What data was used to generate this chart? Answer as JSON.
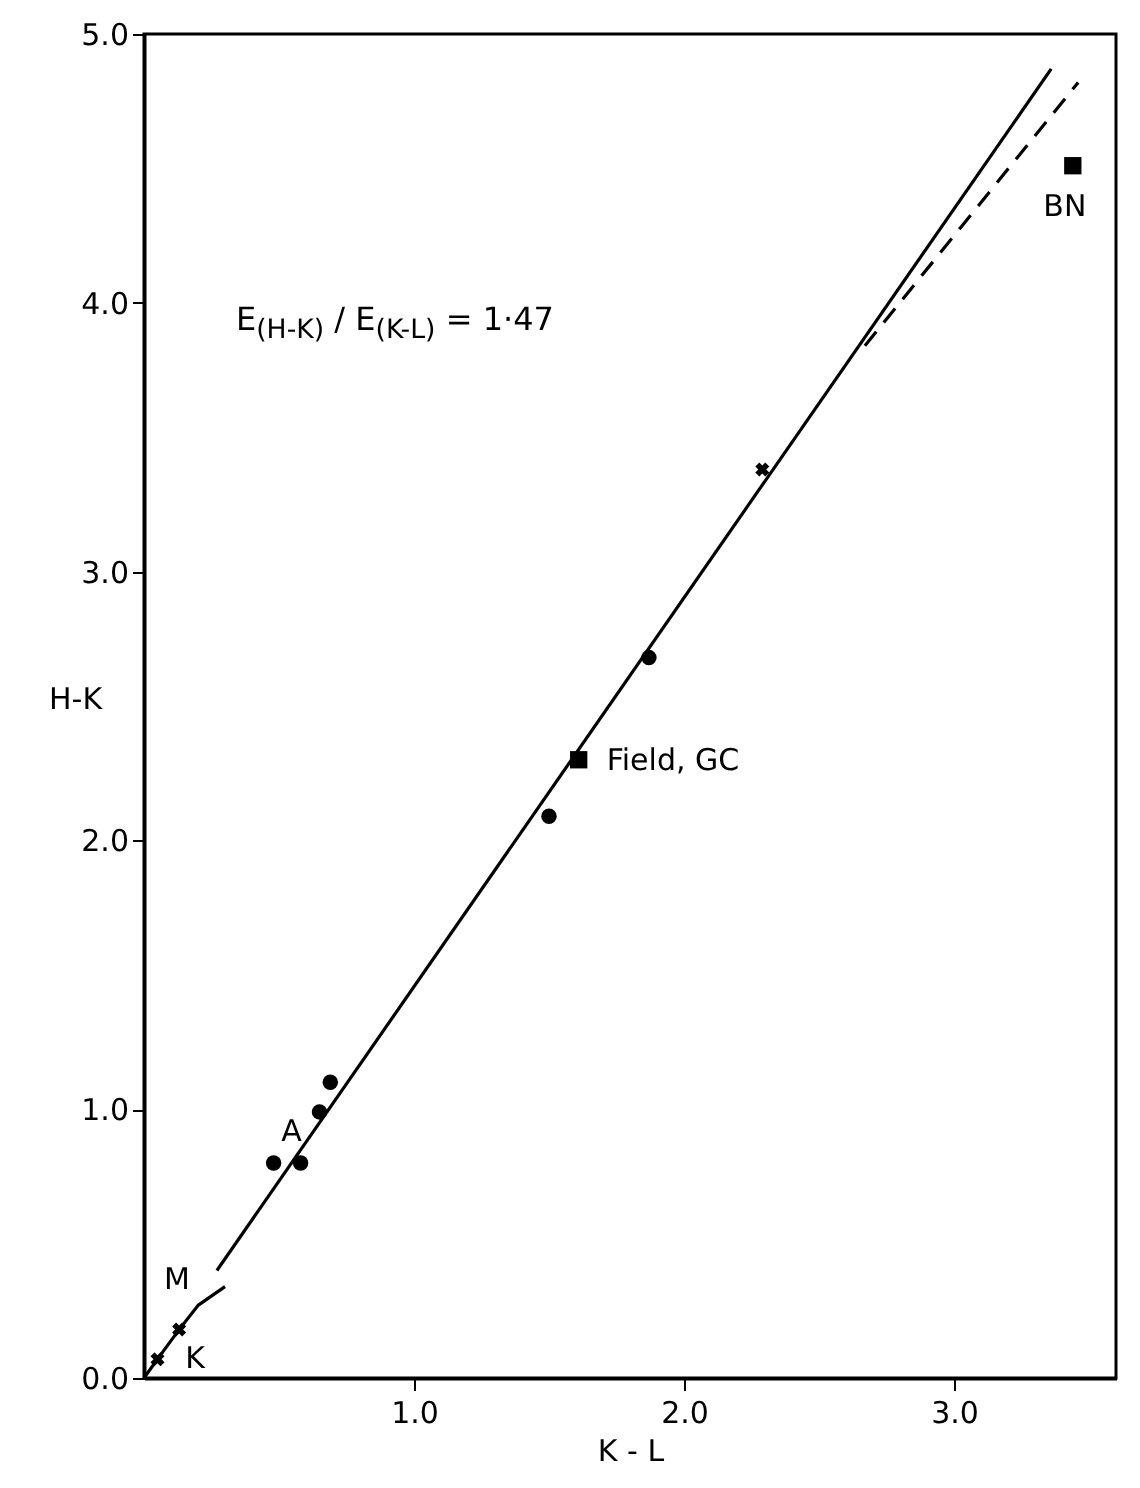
{
  "chart_data": {
    "type": "scatter",
    "xlabel": "K - L",
    "ylabel": "H-K",
    "xlim": [
      0,
      3.6
    ],
    "ylim": [
      0,
      5.0
    ],
    "xticks": [
      {
        "value": 1,
        "label": "1.0"
      },
      {
        "value": 2,
        "label": "2.0"
      },
      {
        "value": 3,
        "label": "3.0"
      }
    ],
    "yticks": [
      {
        "value": 0,
        "label": "0.0"
      },
      {
        "value": 1,
        "label": "1.0"
      },
      {
        "value": 2,
        "label": "2.0"
      },
      {
        "value": 3,
        "label": "3.0"
      },
      {
        "value": 4,
        "label": "4.0"
      },
      {
        "value": 5,
        "label": "5.0"
      }
    ],
    "grid": false,
    "series": [
      {
        "marker": "circle",
        "color": "#000000",
        "x": [
          0.48,
          0.58,
          0.65,
          0.69,
          1.5,
          1.87
        ],
        "values": [
          0.8,
          0.8,
          0.99,
          1.1,
          2.09,
          2.68
        ]
      },
      {
        "marker": "square",
        "color": "#000000",
        "x": [
          1.61,
          3.44
        ],
        "values": [
          2.3,
          4.51
        ]
      },
      {
        "marker": "cross",
        "color": "#000000",
        "x": [
          2.29,
          0.05,
          0.13
        ],
        "values": [
          3.38,
          0.07,
          0.18
        ]
      },
      {
        "type": "line",
        "line_style": "solid",
        "color": "#000000",
        "x": [
          0.27,
          3.36
        ],
        "values": [
          0.4,
          4.87
        ]
      },
      {
        "type": "line",
        "line_style": "dashed",
        "color": "#000000",
        "x": [
          2.67,
          3.46
        ],
        "values": [
          3.84,
          4.82
        ]
      },
      {
        "type": "line",
        "line_style": "solid",
        "color": "#000000",
        "x": [
          0,
          0.05,
          0.13,
          0.2,
          0.3
        ],
        "values": [
          0,
          0.07,
          0.18,
          0.27,
          0.34
        ]
      }
    ],
    "annotations": [
      "E$_{(H-K)}$ / E$_{(K-L)}$ = 1·47",
      {
        "text": "A",
        "x": 0.48,
        "y": 0.8
      },
      {
        "text": "Field, GC",
        "x": 1.61,
        "y": 2.3
      },
      {
        "text": "BN",
        "x": 3.44,
        "y": 4.51
      },
      {
        "text": "M",
        "x": 0.3,
        "y": 0.34
      },
      {
        "text": "K",
        "x": 0.13,
        "y": 0.18
      }
    ]
  }
}
